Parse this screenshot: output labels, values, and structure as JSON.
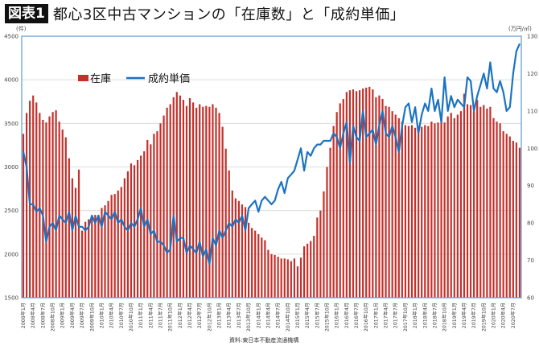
{
  "title": {
    "badge": "図表1",
    "text": "都心3区中古マンションの「在庫数」と「成約単価」"
  },
  "source": "資料:東日本不動産流通機構",
  "colors": {
    "bar": "#c4302b",
    "line": "#1b73c2",
    "grid": "#dddddd",
    "frame": "#5b9bd5"
  },
  "chart_data": {
    "type": "bar+line",
    "title": "都心3区中古マンションの「在庫数」と「成約単価」",
    "start": "2008-01",
    "left_axis": {
      "label": "(件)",
      "ylim": [
        1500,
        4500
      ],
      "ticks": [
        1500,
        2000,
        2500,
        3000,
        3500,
        4000,
        4500
      ]
    },
    "right_axis": {
      "label": "(万円/㎡)",
      "ylim": [
        60,
        130
      ],
      "ticks": [
        60,
        70,
        80,
        90,
        100,
        110,
        120,
        130
      ]
    },
    "grid": true,
    "legend": {
      "position": "top-left",
      "entries": [
        "在庫",
        "成約単価"
      ]
    },
    "x_labels": [
      "2008年1月",
      "2008年4月",
      "2008年7月",
      "2008年10月",
      "2009年1月",
      "2009年4月",
      "2009年7月",
      "2009年10月",
      "2010年1月",
      "2010年4月",
      "2010年7月",
      "2010年10月",
      "2011年1月",
      "2011年4月",
      "2011年7月",
      "2011年10月",
      "2012年1月",
      "2012年4月",
      "2012年7月",
      "2012年10月",
      "2013年1月",
      "2013年4月",
      "2013年7月",
      "2013年10月",
      "2014年1月",
      "2014年4月",
      "2014年7月",
      "2014年10月",
      "2015年1月",
      "2015年4月",
      "2015年7月",
      "2015年10月",
      "2016年1月",
      "2016年4月",
      "2016年7月",
      "2016年10月",
      "2017年1月",
      "2017年4月",
      "2017年7月",
      "2017年10月",
      "2018年1月",
      "2018年4月",
      "2018年7月",
      "2018年10月",
      "2019年1月",
      "2019年4月",
      "2019年7月",
      "2019年10月",
      "2020年1月",
      "2020年4月",
      "2020年7月"
    ],
    "series": [
      {
        "name": "在庫",
        "type": "bar",
        "axis": "left",
        "values": [
          3380,
          3620,
          3760,
          3820,
          3740,
          3620,
          3540,
          3510,
          3580,
          3630,
          3650,
          3520,
          3430,
          3340,
          3100,
          2870,
          2760,
          2970,
          2270,
          2370,
          2400,
          2440,
          2450,
          2450,
          2530,
          2560,
          2610,
          2680,
          2690,
          2730,
          2770,
          2870,
          2950,
          3040,
          3020,
          3080,
          3130,
          3180,
          3310,
          3260,
          3380,
          3410,
          3500,
          3590,
          3680,
          3720,
          3800,
          3860,
          3820,
          3770,
          3700,
          3790,
          3740,
          3680,
          3720,
          3690,
          3700,
          3690,
          3720,
          3680,
          3620,
          3460,
          3210,
          2960,
          2730,
          2640,
          2610,
          2570,
          2540,
          2360,
          2300,
          2270,
          2230,
          2190,
          2160,
          2050,
          2000,
          1990,
          1970,
          1950,
          1950,
          1940,
          1920,
          1950,
          1860,
          1960,
          2090,
          2120,
          2150,
          2210,
          2420,
          2500,
          2720,
          3000,
          3220,
          3470,
          3630,
          3730,
          3780,
          3860,
          3880,
          3890,
          3870,
          3880,
          3900,
          3910,
          3920,
          3890,
          3800,
          3820,
          3780,
          3700,
          3690,
          3640,
          3600,
          3560,
          3520,
          3480,
          3470,
          3480,
          3450,
          3470,
          3460,
          3480,
          3470,
          3520,
          3500,
          3510,
          3550,
          3510,
          3580,
          3620,
          3560,
          3600,
          3640,
          3840,
          3720,
          3710,
          3640,
          3770,
          3690,
          3710,
          3670,
          3690,
          3560,
          3520,
          3500,
          3410,
          3380,
          3350,
          3300,
          3280,
          3220
        ]
      },
      {
        "name": "成約単価",
        "type": "line",
        "axis": "right",
        "values": [
          99,
          95,
          85,
          85,
          83,
          84,
          82,
          75,
          79,
          80,
          78,
          82,
          81,
          80,
          83,
          78,
          82,
          79,
          79,
          78,
          79,
          82,
          80,
          82,
          79,
          83,
          82,
          81,
          83,
          80,
          81,
          79,
          78,
          80,
          79,
          81,
          84,
          79,
          81,
          77,
          78,
          75,
          75,
          74,
          72,
          73,
          82,
          75,
          76,
          76,
          72,
          74,
          73,
          72,
          75,
          71,
          73,
          69,
          76,
          74,
          78,
          76,
          78,
          80,
          79,
          81,
          80,
          82,
          78,
          84,
          85,
          86,
          83,
          86,
          87,
          86,
          85,
          86,
          89,
          91,
          88,
          92,
          93,
          94,
          97,
          100,
          94,
          99,
          98,
          100,
          101,
          101,
          102,
          102,
          102,
          104,
          103,
          100,
          104,
          107,
          96,
          106,
          103,
          102,
          110,
          103,
          104,
          105,
          101,
          106,
          110,
          104,
          103,
          106,
          103,
          99,
          106,
          111,
          112,
          107,
          111,
          104,
          109,
          112,
          110,
          116,
          110,
          113,
          107,
          119,
          110,
          114,
          111,
          113,
          112,
          111,
          119,
          118,
          110,
          114,
          117,
          120,
          116,
          123,
          116,
          115,
          118,
          115,
          110,
          111,
          120,
          126,
          128
        ]
      }
    ]
  }
}
